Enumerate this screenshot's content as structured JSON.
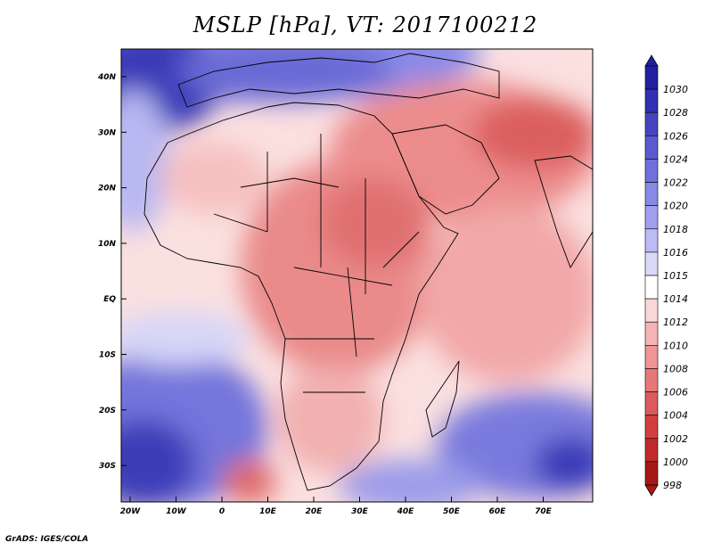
{
  "title": "MSLP [hPa], VT: 2017100212",
  "credit": "GrADS: IGES/COLA",
  "map": {
    "lon_labels": [
      "20W",
      "10W",
      "0",
      "10E",
      "20E",
      "30E",
      "40E",
      "50E",
      "60E",
      "70E"
    ],
    "lat_labels": [
      "40N",
      "30N",
      "20N",
      "10N",
      "EQ",
      "10S",
      "20S",
      "30S"
    ]
  },
  "colorbar": {
    "labels": [
      "1030",
      "1028",
      "1026",
      "1024",
      "1022",
      "1020",
      "1018",
      "1016",
      "1015",
      "1014",
      "1012",
      "1010",
      "1008",
      "1006",
      "1004",
      "1002",
      "1000",
      "998"
    ],
    "colors": [
      "#2020a0",
      "#3030b0",
      "#4545c0",
      "#5a5ad0",
      "#7070dc",
      "#8888e6",
      "#a0a0ee",
      "#bcbcf4",
      "#dadaf8",
      "#ffffff",
      "#fbd6d6",
      "#f5b4b4",
      "#ef9595",
      "#e67878",
      "#dc5a5a",
      "#d04040",
      "#c02a2a",
      "#a81818"
    ]
  }
}
